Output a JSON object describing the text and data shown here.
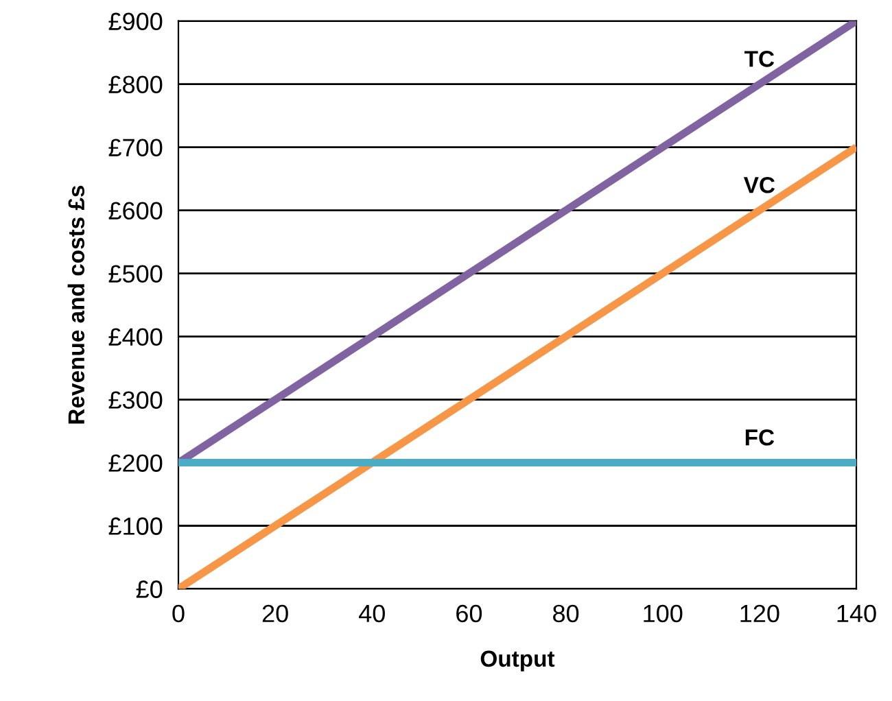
{
  "chart_data": {
    "type": "line",
    "xlabel": "Output",
    "ylabel": "Revenue and costs £s",
    "x": [
      0,
      20,
      40,
      60,
      80,
      100,
      120,
      140
    ],
    "series": [
      {
        "name": "TC",
        "color": "#8064a2",
        "values": [
          200,
          300,
          400,
          500,
          600,
          700,
          800,
          900
        ]
      },
      {
        "name": "VC",
        "color": "#f79646",
        "values": [
          0,
          100,
          200,
          300,
          400,
          500,
          600,
          700
        ]
      },
      {
        "name": "FC",
        "color": "#4bacc6",
        "values": [
          200,
          200,
          200,
          200,
          200,
          200,
          200,
          200
        ]
      }
    ],
    "xlim": [
      0,
      140
    ],
    "xticks": [
      0,
      20,
      40,
      60,
      80,
      100,
      120,
      140
    ],
    "ylim": [
      0,
      900
    ],
    "yticks": [
      {
        "value": 0,
        "label": "£0"
      },
      {
        "value": 100,
        "label": "£100"
      },
      {
        "value": 200,
        "label": "£200"
      },
      {
        "value": 300,
        "label": "£300"
      },
      {
        "value": 400,
        "label": "£400"
      },
      {
        "value": 500,
        "label": "£500"
      },
      {
        "value": 600,
        "label": "£600"
      },
      {
        "value": 700,
        "label": "£700"
      },
      {
        "value": 800,
        "label": "£800"
      },
      {
        "value": 900,
        "label": "£900"
      }
    ],
    "grid": "y",
    "marker": "none",
    "line_style": "solid"
  }
}
